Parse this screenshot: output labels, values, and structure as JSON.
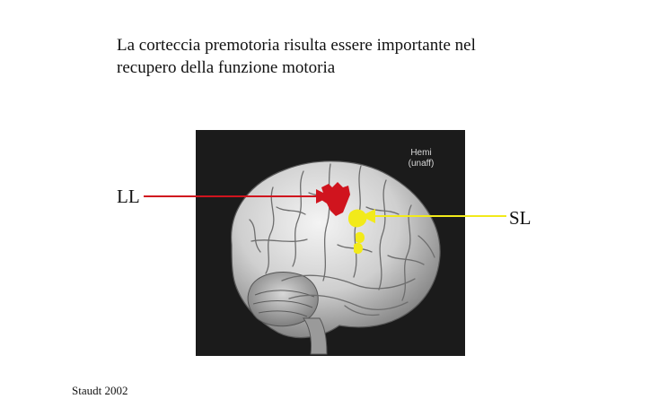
{
  "slide": {
    "title_lines": [
      "La corteccia premotoria risulta essere importante nel",
      "recupero della funzione motoria"
    ],
    "figure": {
      "hemi_label_lines": [
        "Hemi",
        "(unaff)"
      ],
      "icon": "brain-lateral-view-icon"
    },
    "markers": {
      "ll": {
        "label": "LL",
        "color": "#d0141e"
      },
      "sl": {
        "label": "SL",
        "color": "#f2ea1a"
      }
    },
    "citation": "Staudt 2002"
  }
}
